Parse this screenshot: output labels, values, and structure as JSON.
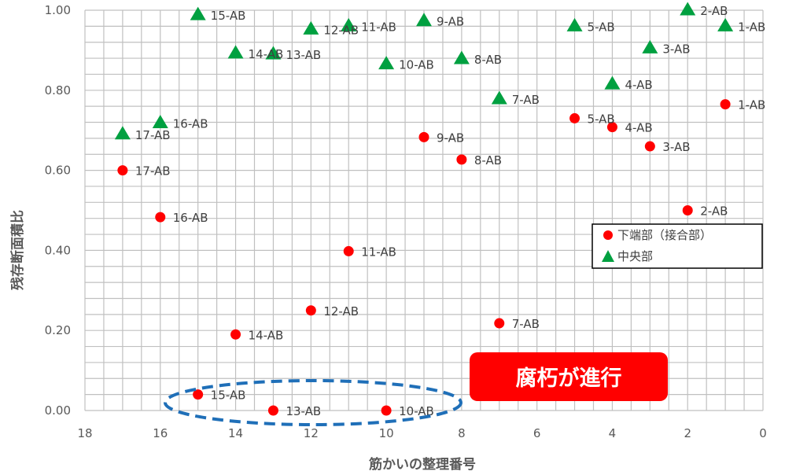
{
  "chart_data": {
    "type": "scatter",
    "xlabel": "筋かいの整理番号",
    "ylabel": "残存断面積比",
    "xlim": [
      0,
      18
    ],
    "ylim": [
      0,
      1
    ],
    "x_reversed": true,
    "grid": true,
    "x_ticks": [
      "18",
      "16",
      "14",
      "12",
      "10",
      "8",
      "6",
      "4",
      "2",
      "0"
    ],
    "y_ticks": [
      "0.00",
      "0.20",
      "0.40",
      "0.60",
      "0.80",
      "1.00"
    ],
    "legend_position": "right-middle",
    "series": [
      {
        "name": "下端部（接合部）",
        "marker": "circle",
        "color": "#ff0000",
        "points": [
          {
            "x": 1,
            "y": 0.765,
            "label": "1-AB"
          },
          {
            "x": 2,
            "y": 0.5,
            "label": "2-AB"
          },
          {
            "x": 3,
            "y": 0.66,
            "label": "3-AB"
          },
          {
            "x": 4,
            "y": 0.708,
            "label": "4-AB"
          },
          {
            "x": 5,
            "y": 0.73,
            "label": "5-AB"
          },
          {
            "x": 7,
            "y": 0.218,
            "label": "7-AB"
          },
          {
            "x": 8,
            "y": 0.627,
            "label": "8-AB"
          },
          {
            "x": 9,
            "y": 0.683,
            "label": "9-AB"
          },
          {
            "x": 10,
            "y": 0.0,
            "label": "10-AB"
          },
          {
            "x": 11,
            "y": 0.398,
            "label": "11-AB"
          },
          {
            "x": 12,
            "y": 0.25,
            "label": "12-AB"
          },
          {
            "x": 13,
            "y": 0.0,
            "label": "13-AB"
          },
          {
            "x": 14,
            "y": 0.19,
            "label": "14-AB"
          },
          {
            "x": 15,
            "y": 0.04,
            "label": "15-AB"
          },
          {
            "x": 16,
            "y": 0.483,
            "label": "16-AB"
          },
          {
            "x": 17,
            "y": 0.6,
            "label": "17-AB"
          }
        ]
      },
      {
        "name": "中央部",
        "marker": "triangle",
        "color": "#00a040",
        "points": [
          {
            "x": 1,
            "y": 0.96,
            "label": "1-AB"
          },
          {
            "x": 2,
            "y": 1.0,
            "label": "2-AB"
          },
          {
            "x": 3,
            "y": 0.905,
            "label": "3-AB"
          },
          {
            "x": 4,
            "y": 0.815,
            "label": "4-AB"
          },
          {
            "x": 5,
            "y": 0.96,
            "label": "5-AB"
          },
          {
            "x": 7,
            "y": 0.778,
            "label": "7-AB"
          },
          {
            "x": 8,
            "y": 0.878,
            "label": "8-AB"
          },
          {
            "x": 9,
            "y": 0.973,
            "label": "9-AB"
          },
          {
            "x": 10,
            "y": 0.865,
            "label": "10-AB"
          },
          {
            "x": 11,
            "y": 0.96,
            "label": "11-AB"
          },
          {
            "x": 12,
            "y": 0.952,
            "label": "12-AB"
          },
          {
            "x": 13,
            "y": 0.89,
            "label": "13-AB"
          },
          {
            "x": 14,
            "y": 0.892,
            "label": "14-AB"
          },
          {
            "x": 15,
            "y": 0.988,
            "label": "15-AB"
          },
          {
            "x": 16,
            "y": 0.718,
            "label": "16-AB"
          },
          {
            "x": 17,
            "y": 0.69,
            "label": "17-AB"
          }
        ]
      }
    ],
    "annotations": [
      {
        "type": "callout",
        "text": "腐朽が進行",
        "color": "#ff0000",
        "text_color": "#ffffff"
      },
      {
        "type": "dashed-ellipse",
        "color": "#1f6fb8",
        "encloses": [
          "15-AB",
          "13-AB",
          "10-AB"
        ]
      }
    ]
  }
}
